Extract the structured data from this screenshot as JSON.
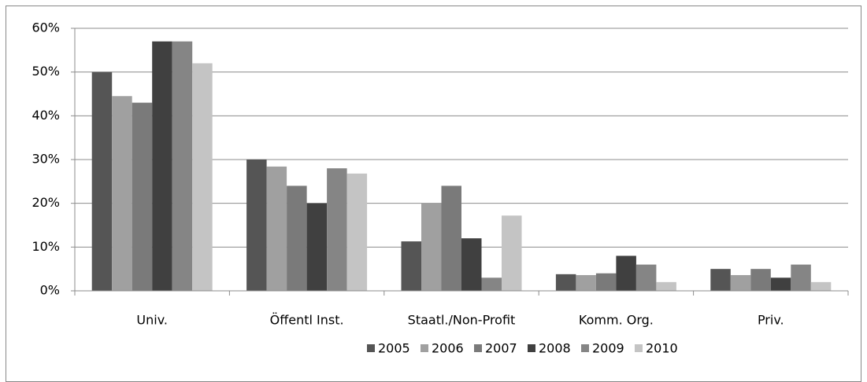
{
  "chart_data": {
    "type": "bar",
    "categories": [
      "Univ.",
      "Öffentl Inst.",
      "Staatl./Non-Profit",
      "Komm. Org.",
      "Priv."
    ],
    "series": [
      {
        "name": "2005",
        "color": "#555555",
        "values": [
          50,
          30,
          11.3,
          3.8,
          5
        ]
      },
      {
        "name": "2006",
        "color": "#a0a0a0",
        "values": [
          44.5,
          28.4,
          20,
          3.6,
          3.6
        ]
      },
      {
        "name": "2007",
        "color": "#7a7a7a",
        "values": [
          43,
          24,
          24,
          4,
          5
        ]
      },
      {
        "name": "2008",
        "color": "#404040",
        "values": [
          57,
          20,
          12,
          8,
          3
        ]
      },
      {
        "name": "2009",
        "color": "#858585",
        "values": [
          57,
          28,
          3,
          6,
          6
        ]
      },
      {
        "name": "2010",
        "color": "#c4c4c4",
        "values": [
          52,
          26.8,
          17.2,
          2,
          2
        ]
      }
    ],
    "ylim": [
      0,
      60
    ],
    "yticks": [
      {
        "value": 0,
        "label": "0%"
      },
      {
        "value": 10,
        "label": "10%"
      },
      {
        "value": 20,
        "label": "20%"
      },
      {
        "value": 30,
        "label": "30%"
      },
      {
        "value": 40,
        "label": "40%"
      },
      {
        "value": 50,
        "label": "50%"
      },
      {
        "value": 60,
        "label": "60%"
      }
    ],
    "grid": true,
    "legend": "bottom"
  }
}
